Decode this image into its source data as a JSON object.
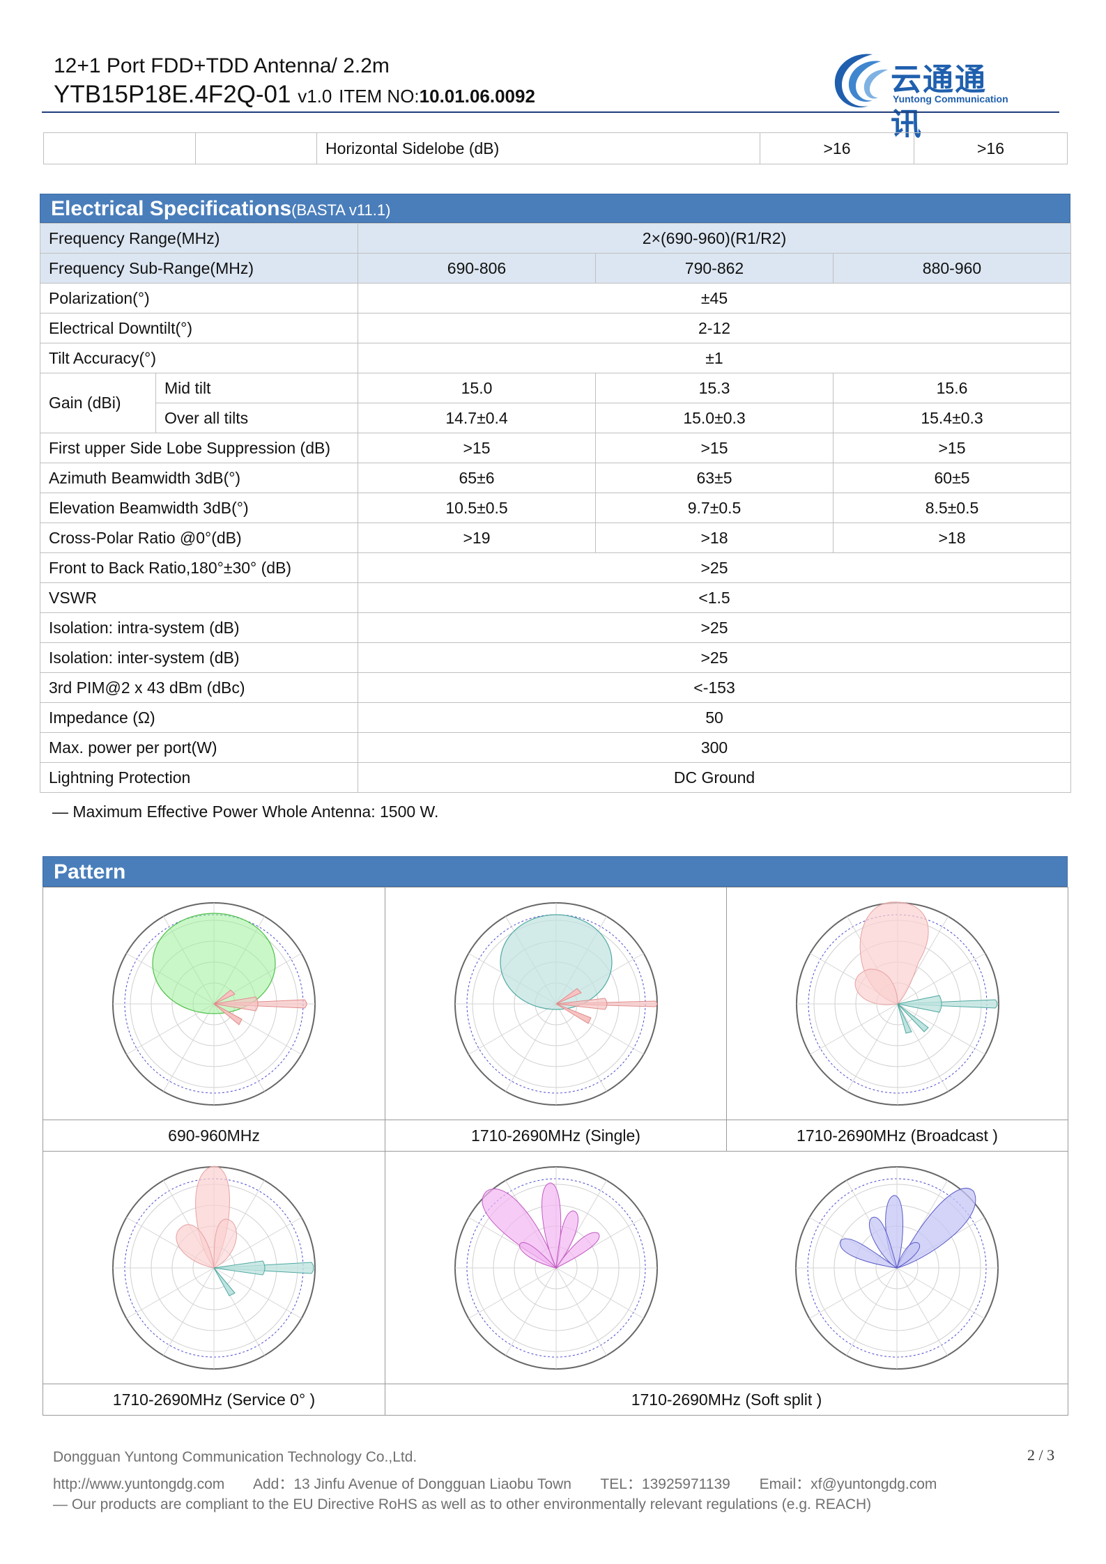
{
  "header": {
    "line1": "12+1 Port FDD+TDD Antenna/ 2.2m",
    "model": "YTB15P18E.4F2Q-01",
    "version": "v1.0",
    "item_label": "ITEM NO:",
    "item_no": "10.01.06.0092",
    "logo_cn": "云通通讯",
    "logo_en": "Yuntong Communication",
    "brand_color": "#1f5fae"
  },
  "top_row": {
    "label": "Horizontal Sidelobe (dB)",
    "v1": ">16",
    "v2": ">16"
  },
  "electrical": {
    "title": "Electrical Specifications",
    "subtitle": "(BASTA v11.1)",
    "rows": {
      "freq_range": {
        "label": "Frequency Range(MHz)",
        "value": "2×(690-960)(R1/R2)"
      },
      "sub_range": {
        "label": "Frequency Sub-Range(MHz)",
        "values": [
          "690-806",
          "790-862",
          "880-960"
        ]
      },
      "polarization": {
        "label": "Polarization(°)",
        "value": "±45"
      },
      "downtilt": {
        "label": "Electrical Downtilt(°)",
        "value": "2-12"
      },
      "tilt_accuracy": {
        "label": "Tilt Accuracy(°)",
        "value": "±1"
      },
      "gain": {
        "label": "Gain (dBi)",
        "mid_label": "Mid tilt",
        "mid": [
          "15.0",
          "15.3",
          "15.6"
        ],
        "over_label": "Over all tilts",
        "over": [
          "14.7±0.4",
          "15.0±0.3",
          "15.4±0.3"
        ]
      },
      "sidelobe": {
        "label": "First upper Side Lobe Suppression (dB)",
        "values": [
          ">15",
          ">15",
          ">15"
        ]
      },
      "azimuth": {
        "label": "Azimuth Beamwidth 3dB(°)",
        "values": [
          "65±6",
          "63±5",
          "60±5"
        ]
      },
      "elevation": {
        "label": "Elevation Beamwidth 3dB(°)",
        "values": [
          "10.5±0.5",
          "9.7±0.5",
          "8.5±0.5"
        ]
      },
      "cross_polar": {
        "label": "Cross-Polar Ratio @0°(dB)",
        "values": [
          ">19",
          ">18",
          ">18"
        ]
      },
      "front_back": {
        "label": "Front to Back Ratio,180°±30° (dB)",
        "value": ">25"
      },
      "vswr": {
        "label": "VSWR",
        "value": "<1.5"
      },
      "iso_intra": {
        "label": "Isolation: intra-system (dB)",
        "value": ">25"
      },
      "iso_inter": {
        "label": "Isolation: inter-system (dB)",
        "value": ">25"
      },
      "pim": {
        "label": "3rd PIM@2 x 43 dBm (dBc)",
        "value": "<-153"
      },
      "impedance": {
        "label": "Impedance (Ω)",
        "value": "50"
      },
      "max_power": {
        "label": "Max. power per port(W)",
        "value": "300"
      },
      "lightning": {
        "label": "Lightning Protection",
        "value": "DC Ground"
      }
    },
    "note": "— Maximum Effective Power Whole Antenna: 1500 W."
  },
  "pattern": {
    "title": "Pattern",
    "captions": [
      "690-960MHz",
      "1710-2690MHz (Single)",
      "1710-2690MHz (Broadcast )",
      "1710-2690MHz (Service 0° )",
      "1710-2690MHz (Soft split )"
    ]
  },
  "footer": {
    "company": "Dongguan Yuntong Communication Technology Co.,Ltd.",
    "website": "http://www.yuntongdg.com",
    "address": "Add：13 Jinfu Avenue   of Dongguan Liaobu Town",
    "tel": "TEL：13925971139",
    "email": "Email：xf@yuntongdg.com",
    "rohs": "— Our products are compliant to the EU Directive RoHS as well as to other environmentally relevant regulations (e.g. REACH)",
    "page": "2 / 3"
  }
}
